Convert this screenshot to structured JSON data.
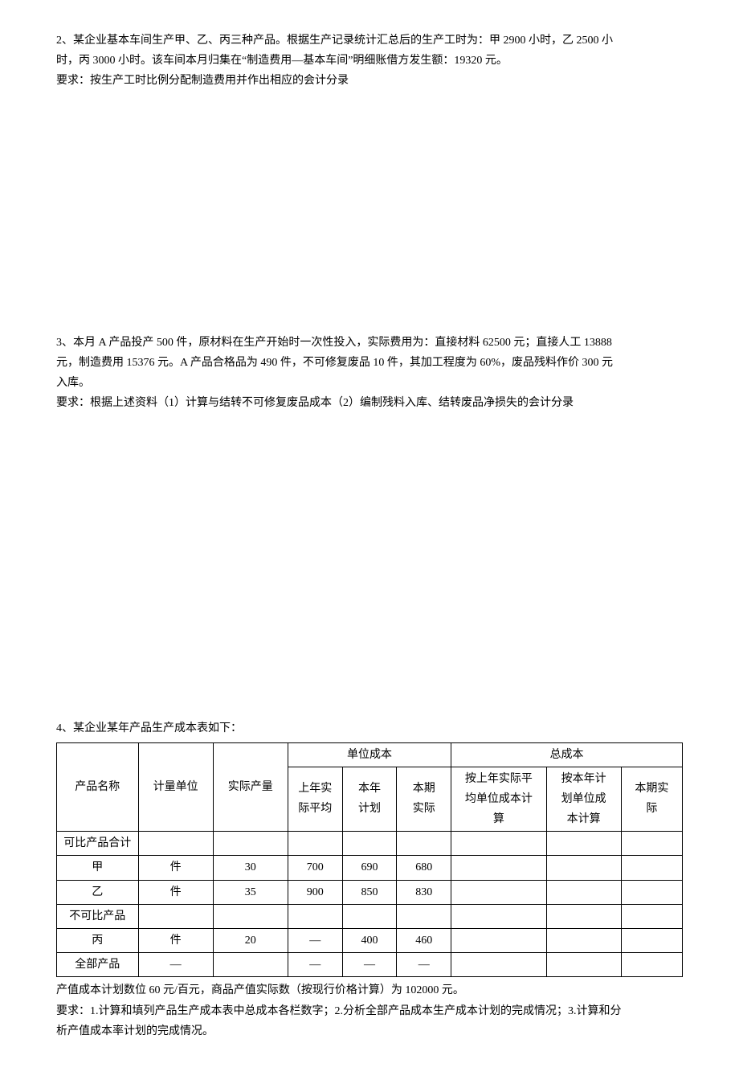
{
  "q2": {
    "line1": "2、某企业基本车间生产甲、乙、丙三种产品。根据生产记录统计汇总后的生产工时为：甲 2900 小时，乙 2500 小",
    "line2": "时，丙 3000 小时。该车间本月归集在“制造费用—基本车间”明细账借方发生额：19320 元。",
    "line3": "要求：按生产工时比例分配制造费用并作出相应的会计分录"
  },
  "q3": {
    "line1": "3、本月 A 产品投产 500 件，原材料在生产开始时一次性投入，实际费用为：直接材料 62500 元；直接人工 13888",
    "line2": "元，制造费用 15376 元。A 产品合格品为 490 件，不可修复废品 10 件，其加工程度为 60%，废品残料作价 300 元",
    "line3": "入库。",
    "line4": "要求：根据上述资料（1）计算与结转不可修复废品成本（2）编制残料入库、结转废品净损失的会计分录"
  },
  "q4": {
    "intro": "4、某企业某年产品生产成本表如下：",
    "headers": {
      "name": "产品名称",
      "unit": "计量单位",
      "qty": "实际产量",
      "unit_cost": "单位成本",
      "total_cost": "总成本",
      "uc1a": "上年实",
      "uc1b": "际平均",
      "uc2a": "本年",
      "uc2b": "计划",
      "uc3a": "本期",
      "uc3b": "实际",
      "tc1a": "按上年实际平",
      "tc1b": "均单位成本计",
      "tc1c": "算",
      "tc2a": "按本年计",
      "tc2b": "划单位成",
      "tc2c": "本计算",
      "tc3a": "本期实",
      "tc3b": "际"
    },
    "rows": [
      {
        "name": "可比产品合计",
        "unit": "",
        "qty": "",
        "uc1": "",
        "uc2": "",
        "uc3": "",
        "tc1": "",
        "tc2": "",
        "tc3": ""
      },
      {
        "name": "甲",
        "unit": "件",
        "qty": "30",
        "uc1": "700",
        "uc2": "690",
        "uc3": "680",
        "tc1": "",
        "tc2": "",
        "tc3": ""
      },
      {
        "name": "乙",
        "unit": "件",
        "qty": "35",
        "uc1": "900",
        "uc2": "850",
        "uc3": "830",
        "tc1": "",
        "tc2": "",
        "tc3": ""
      },
      {
        "name": "不可比产品",
        "unit": "",
        "qty": "",
        "uc1": "",
        "uc2": "",
        "uc3": "",
        "tc1": "",
        "tc2": "",
        "tc3": ""
      },
      {
        "name": "丙",
        "unit": "件",
        "qty": "20",
        "uc1": "—",
        "uc2": "400",
        "uc3": "460",
        "tc1": "",
        "tc2": "",
        "tc3": ""
      },
      {
        "name": "全部产品",
        "unit": "—",
        "qty": "",
        "uc1": "—",
        "uc2": "—",
        "uc3": "—",
        "tc1": "",
        "tc2": "",
        "tc3": ""
      }
    ],
    "after1": "产值成本计划数位 60 元/百元，商品产值实际数（按现行价格计算）为 102000 元。",
    "after2": "要求：1.计算和填列产品生产成本表中总成本各栏数字；2.分析全部产品成本生产成本计划的完成情况；3.计算和分",
    "after3": "析产值成本率计划的完成情况。"
  }
}
